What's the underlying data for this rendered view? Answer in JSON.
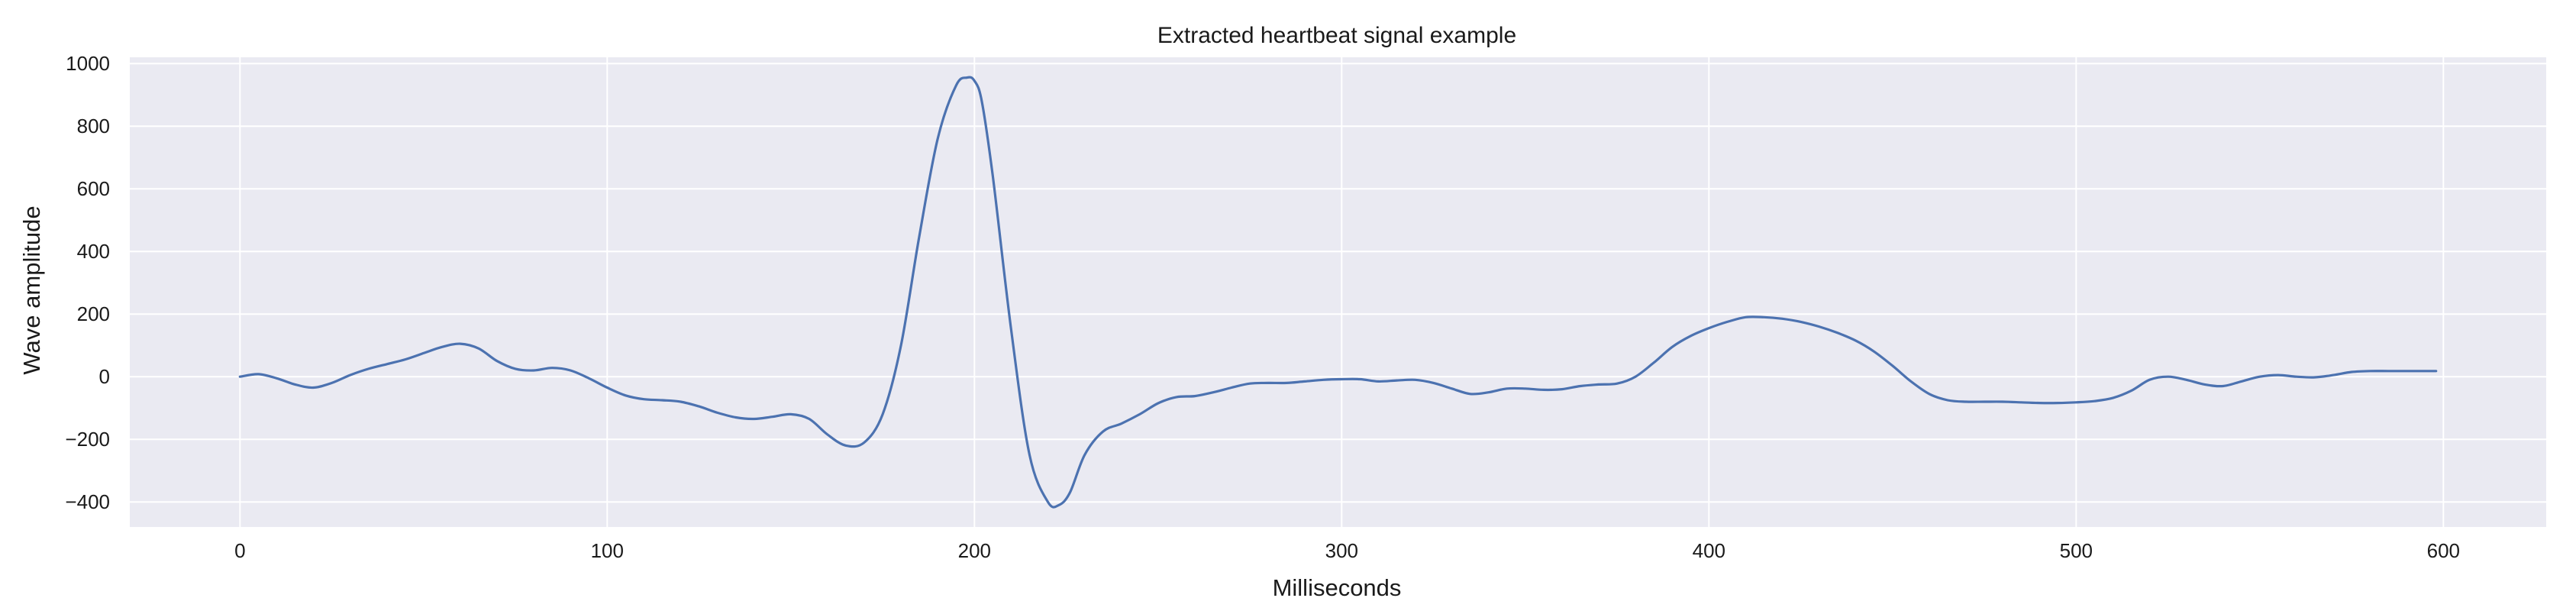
{
  "chart_data": {
    "type": "line",
    "title": "Extracted heartbeat signal example",
    "xlabel": "Milliseconds",
    "ylabel": "Wave amplitude",
    "xlim": [
      -30,
      628
    ],
    "ylim": [
      -480,
      1020
    ],
    "xticks": [
      0,
      100,
      200,
      300,
      400,
      500,
      600
    ],
    "yticks": [
      -400,
      -200,
      0,
      200,
      400,
      600,
      800,
      1000
    ],
    "grid": true,
    "background": "#eaeaf2",
    "line_color": "#4c72b0",
    "grid_color": "#ffffff",
    "series": [
      {
        "x": [
          0,
          5,
          10,
          15,
          20,
          25,
          30,
          35,
          40,
          45,
          50,
          55,
          60,
          65,
          70,
          75,
          80,
          85,
          90,
          95,
          100,
          105,
          110,
          115,
          120,
          125,
          130,
          135,
          140,
          145,
          150,
          155,
          160,
          165,
          170,
          175,
          180,
          185,
          190,
          195,
          198,
          200,
          202,
          205,
          210,
          215,
          220,
          223,
          226,
          230,
          235,
          240,
          245,
          250,
          255,
          260,
          265,
          270,
          275,
          280,
          285,
          290,
          295,
          300,
          305,
          310,
          315,
          320,
          325,
          330,
          335,
          340,
          345,
          350,
          355,
          360,
          365,
          370,
          375,
          380,
          385,
          390,
          395,
          400,
          405,
          410,
          415,
          420,
          425,
          430,
          435,
          440,
          445,
          450,
          455,
          460,
          465,
          470,
          475,
          480,
          485,
          490,
          495,
          500,
          505,
          510,
          515,
          520,
          525,
          530,
          535,
          540,
          545,
          550,
          555,
          560,
          565,
          570,
          575,
          580,
          585,
          590,
          595,
          598
        ],
        "y": [
          0,
          8,
          -5,
          -25,
          -35,
          -20,
          5,
          25,
          40,
          55,
          75,
          95,
          105,
          90,
          50,
          25,
          20,
          28,
          20,
          -5,
          -35,
          -60,
          -72,
          -75,
          -80,
          -95,
          -115,
          -130,
          -135,
          -128,
          -120,
          -135,
          -185,
          -220,
          -210,
          -120,
          100,
          450,
          760,
          930,
          955,
          945,
          880,
          640,
          150,
          -250,
          -400,
          -410,
          -370,
          -250,
          -175,
          -150,
          -120,
          -85,
          -65,
          -62,
          -50,
          -35,
          -22,
          -20,
          -20,
          -15,
          -10,
          -8,
          -8,
          -15,
          -12,
          -10,
          -20,
          -38,
          -55,
          -50,
          -38,
          -38,
          -42,
          -40,
          -30,
          -25,
          -22,
          0,
          45,
          95,
          130,
          155,
          175,
          190,
          190,
          185,
          175,
          160,
          140,
          115,
          80,
          35,
          -15,
          -55,
          -75,
          -80,
          -80,
          -80,
          -82,
          -84,
          -84,
          -82,
          -78,
          -68,
          -45,
          -10,
          0,
          -10,
          -25,
          -30,
          -15,
          0,
          5,
          0,
          -2,
          5,
          15,
          18,
          18,
          18,
          18,
          18
        ]
      }
    ]
  }
}
